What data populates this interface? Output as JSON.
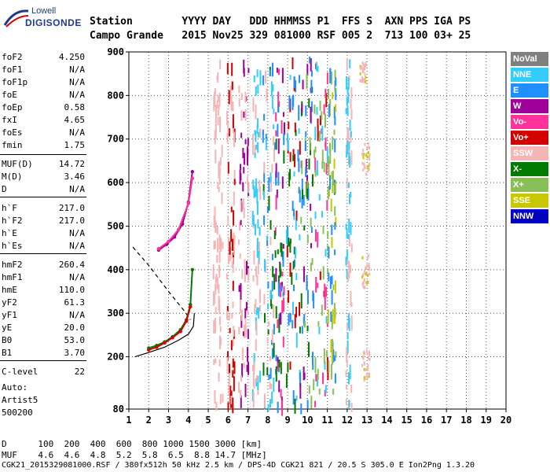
{
  "logo": {
    "line1": "Lowell",
    "line2": "DIGISONDE"
  },
  "header": {
    "row1": "Station        YYYY DAY   DDD HHMMSS P1  FFS S  AXN PPS IGA PS",
    "row2": "Campo Grande   2015 Nov25 329 081000 RSF 005 2  713 100 03+ 25"
  },
  "params": [
    {
      "k": "foF2",
      "v": "4.250"
    },
    {
      "k": "foF1",
      "v": "N/A"
    },
    {
      "k": "foF1p",
      "v": "N/A"
    },
    {
      "k": "foE",
      "v": "N/A"
    },
    {
      "k": "foEp",
      "v": "0.58"
    },
    {
      "k": "fxI",
      "v": "4.65"
    },
    {
      "k": "foEs",
      "v": "N/A"
    },
    {
      "k": "fmin",
      "v": "1.75"
    },
    {
      "k": "MUF(D)",
      "v": "14.72"
    },
    {
      "k": "M(D)",
      "v": "3.46"
    },
    {
      "k": "D",
      "v": "N/A"
    },
    {
      "k": "h`F",
      "v": "217.0"
    },
    {
      "k": "h`F2",
      "v": "217.0"
    },
    {
      "k": "h`E",
      "v": "N/A"
    },
    {
      "k": "h`Es",
      "v": "N/A"
    },
    {
      "k": "hmF2",
      "v": "260.4"
    },
    {
      "k": "hmF1",
      "v": "N/A"
    },
    {
      "k": "hmE",
      "v": "110.0"
    },
    {
      "k": "yF2",
      "v": "61.3"
    },
    {
      "k": "yF1",
      "v": "N/A"
    },
    {
      "k": "yE",
      "v": "20.0"
    },
    {
      "k": "B0",
      "v": "53.0"
    },
    {
      "k": "B1",
      "v": "3.70"
    },
    {
      "k": "C-level",
      "v": "22"
    }
  ],
  "footer_left": [
    "Auto:",
    "Artist5",
    "500200"
  ],
  "legend": [
    {
      "label": "NoVal",
      "color": "#808080"
    },
    {
      "label": "NNE",
      "color": "#33ccff"
    },
    {
      "label": "E",
      "color": "#1e90ff"
    },
    {
      "label": "W",
      "color": "#a0009a"
    },
    {
      "label": "Vo-",
      "color": "#ff3399"
    },
    {
      "label": "Vo+",
      "color": "#d40000"
    },
    {
      "label": "SSW",
      "color": "#f5b5b5"
    },
    {
      "label": "X-",
      "color": "#007a00"
    },
    {
      "label": "X+",
      "color": "#88c057"
    },
    {
      "label": "SSE",
      "color": "#c8c800"
    },
    {
      "label": "NNW",
      "color": "#0000c0"
    }
  ],
  "bottom": {
    "d_row": "D      100  200  400  600  800 1000 1500 3000 [km]",
    "muf_row": "MUF    4.6  4.6  4.8  5.2  5.8  6.5  8.8 14.7 [MHz]",
    "info_row": "CGK21_2015329081000.RSF / 380fx512h 50 kHz 2.5 km / DPS-4D CGK21 821 / 20.5 S 305.0 E Ion2Png 1.3.20"
  },
  "chart_data": {
    "type": "scatter",
    "title": "",
    "xlabel": "",
    "ylabel": "",
    "xlim": [
      1,
      20
    ],
    "ylim": [
      80,
      900
    ],
    "x_ticks": [
      1,
      2,
      3,
      4,
      5,
      6,
      7,
      8,
      9,
      10,
      11,
      12,
      13,
      14,
      15,
      16,
      17,
      18,
      19,
      20
    ],
    "y_ticks": [
      80,
      200,
      300,
      400,
      500,
      600,
      700,
      800,
      900
    ],
    "grid": true,
    "series": [
      {
        "name": "X-",
        "color": "#007a00",
        "x": [
          2.0,
          2.4,
          2.8,
          3.2,
          3.6,
          3.9,
          4.1,
          4.2
        ],
        "y": [
          220,
          226,
          234,
          246,
          262,
          285,
          320,
          400
        ]
      },
      {
        "name": "Vo+",
        "color": "#d40000",
        "x": [
          2.0,
          2.4,
          2.8,
          3.2,
          3.6,
          3.9,
          4.1
        ],
        "y": [
          216,
          222,
          232,
          244,
          258,
          282,
          315
        ]
      },
      {
        "name": "W",
        "color": "#a0009a",
        "x": [
          2.5,
          2.9,
          3.3,
          3.7,
          4.0,
          4.2
        ],
        "y": [
          445,
          458,
          475,
          505,
          555,
          625
        ]
      },
      {
        "name": "Vo-",
        "color": "#ff3399",
        "x": [
          2.5,
          3.0,
          3.5,
          4.0,
          4.2
        ],
        "y": [
          448,
          465,
          492,
          552,
          610
        ]
      }
    ],
    "profile_line": {
      "x": [
        1.3,
        2.0,
        2.8,
        3.5,
        4.0,
        4.25,
        4.3
      ],
      "y": [
        200,
        210,
        222,
        238,
        252,
        270,
        300
      ]
    },
    "profile_dashed": {
      "x": [
        1.2,
        2.0,
        3.0,
        3.8,
        4.1
      ],
      "y": [
        452,
        410,
        350,
        305,
        285
      ]
    }
  }
}
